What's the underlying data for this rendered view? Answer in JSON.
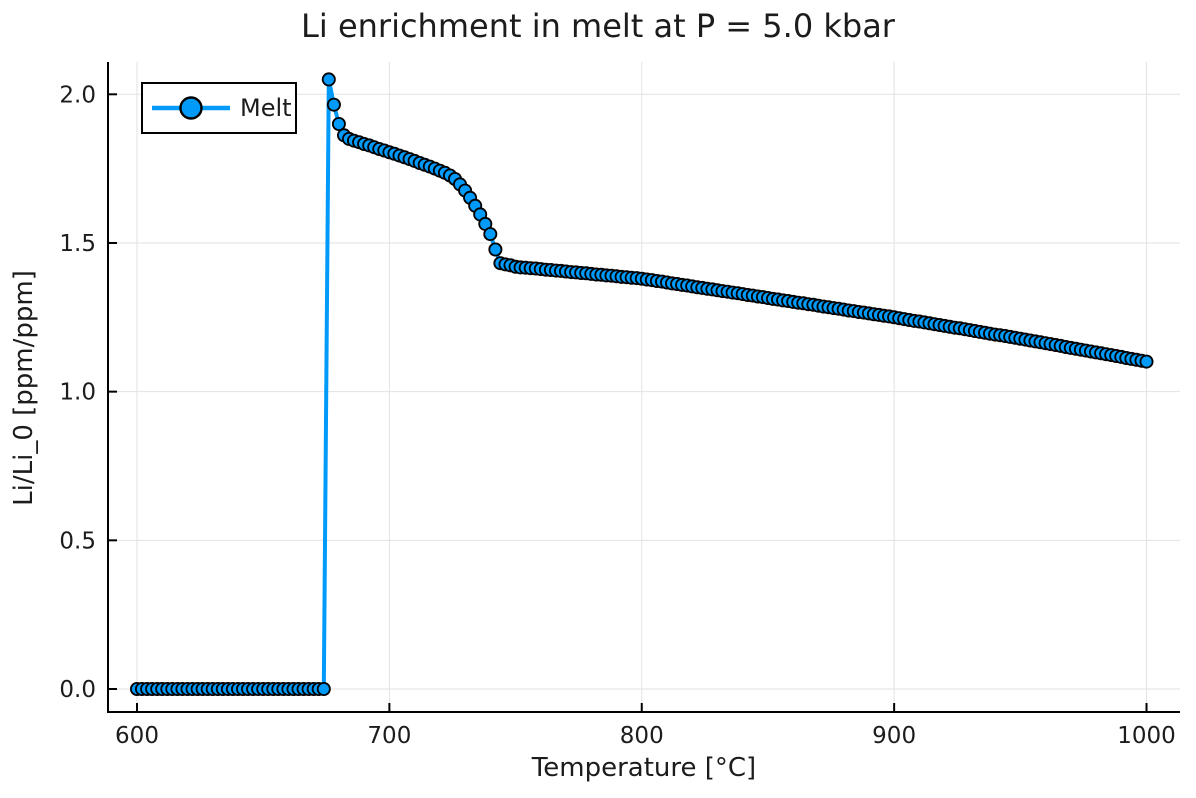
{
  "colors": {
    "background": "#FFFFFF",
    "series_blue": "#009AFA",
    "marker_stroke": "#000000",
    "grid": "#E2E2E2",
    "axis": "#000000",
    "text": "#1C1C1C"
  },
  "chart_data": {
    "type": "line",
    "title": "Li enrichment in melt at P = 5.0 kbar",
    "xlabel": "Temperature [°C]",
    "ylabel": "Li/Li_0 [ppm/ppm]",
    "xlim": [
      588,
      1014
    ],
    "ylim": [
      -0.08,
      2.11
    ],
    "x_ticks": [
      600,
      700,
      800,
      900,
      1000
    ],
    "x_tick_labels": [
      "600",
      "700",
      "800",
      "900",
      "1000"
    ],
    "y_ticks": [
      0.0,
      0.5,
      1.0,
      1.5,
      2.0
    ],
    "y_tick_labels": [
      "0.0",
      "0.5",
      "1.0",
      "1.5",
      "2.0"
    ],
    "grid": true,
    "legend_position": "top-left",
    "series": [
      {
        "name": "Melt",
        "marker": "circle",
        "color": "#009AFA",
        "marker_stroke": "#000000",
        "x_start": 600,
        "x_step": 2,
        "x_end": 1000,
        "values": [
          0,
          0,
          0,
          0,
          0,
          0,
          0,
          0,
          0,
          0,
          0,
          0,
          0,
          0,
          0,
          0,
          0,
          0,
          0,
          0,
          0,
          0,
          0,
          0,
          0,
          0,
          0,
          0,
          0,
          0,
          0,
          0,
          0,
          0,
          0,
          0,
          0,
          0,
          2.05,
          1.965,
          1.9,
          1.862,
          1.85,
          1.844,
          1.839,
          1.833,
          1.828,
          1.822,
          1.816,
          1.811,
          1.805,
          1.8,
          1.794,
          1.788,
          1.782,
          1.776,
          1.769,
          1.763,
          1.757,
          1.75,
          1.743,
          1.736,
          1.727,
          1.715,
          1.697,
          1.676,
          1.652,
          1.625,
          1.596,
          1.564,
          1.53,
          1.478,
          1.432,
          1.428,
          1.425,
          1.42,
          1.418,
          1.417,
          1.415,
          1.414,
          1.412,
          1.41,
          1.409,
          1.407,
          1.406,
          1.404,
          1.402,
          1.401,
          1.399,
          1.398,
          1.396,
          1.394,
          1.393,
          1.391,
          1.39,
          1.388,
          1.386,
          1.385,
          1.383,
          1.382,
          1.38,
          1.377,
          1.375,
          1.372,
          1.37,
          1.367,
          1.364,
          1.362,
          1.359,
          1.357,
          1.354,
          1.351,
          1.349,
          1.346,
          1.344,
          1.341,
          1.338,
          1.336,
          1.333,
          1.331,
          1.328,
          1.325,
          1.323,
          1.32,
          1.318,
          1.315,
          1.312,
          1.31,
          1.307,
          1.305,
          1.302,
          1.299,
          1.297,
          1.294,
          1.292,
          1.289,
          1.286,
          1.284,
          1.281,
          1.279,
          1.276,
          1.273,
          1.271,
          1.268,
          1.266,
          1.263,
          1.26,
          1.258,
          1.255,
          1.253,
          1.25,
          1.247,
          1.244,
          1.241,
          1.238,
          1.236,
          1.233,
          1.23,
          1.227,
          1.224,
          1.221,
          1.218,
          1.215,
          1.213,
          1.21,
          1.207,
          1.204,
          1.201,
          1.198,
          1.195,
          1.192,
          1.19,
          1.187,
          1.184,
          1.181,
          1.178,
          1.175,
          1.172,
          1.169,
          1.166,
          1.163,
          1.16,
          1.157,
          1.154,
          1.15,
          1.147,
          1.144,
          1.141,
          1.138,
          1.135,
          1.132,
          1.129,
          1.126,
          1.123,
          1.12,
          1.117,
          1.113,
          1.11,
          1.107,
          1.104,
          1.101
        ]
      }
    ]
  }
}
